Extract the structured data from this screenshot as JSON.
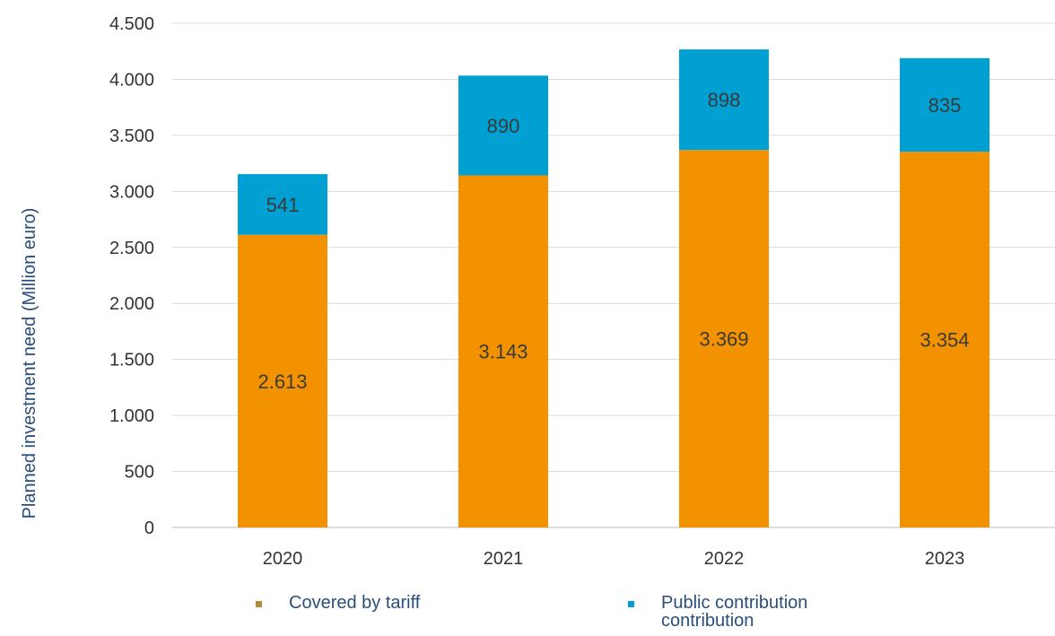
{
  "chart_data": {
    "type": "bar",
    "stacked": true,
    "categories": [
      "2020",
      "2021",
      "2022",
      "2023"
    ],
    "series": [
      {
        "name": "Covered by tariff",
        "values": [
          2613,
          3143,
          3369,
          3354
        ],
        "labels": [
          "2.613",
          "3.143",
          "3.369",
          "3.354"
        ],
        "color": "#f39200"
      },
      {
        "name": "Public contribution",
        "values": [
          541,
          890,
          898,
          835
        ],
        "labels": [
          "541",
          "890",
          "898",
          "835"
        ],
        "color": "#00a0d2"
      }
    ],
    "ylabel": "Planned investment need (Million euro)",
    "ylim": [
      0,
      4500
    ],
    "yticks": [
      0,
      500,
      1000,
      1500,
      2000,
      2500,
      3000,
      3500,
      4000,
      4500
    ],
    "ytick_labels": [
      "0",
      "500",
      "1.000",
      "1.500",
      "2.000",
      "2.500",
      "3.000",
      "3.500",
      "4.000",
      "4.500"
    ],
    "grid": true,
    "legend_position": "bottom"
  },
  "legend": {
    "items": [
      {
        "label": "Covered by tariff",
        "color": "#b8893a"
      },
      {
        "label": "Public contribution",
        "label2": "contribution",
        "color": "#00a0d2"
      }
    ]
  }
}
